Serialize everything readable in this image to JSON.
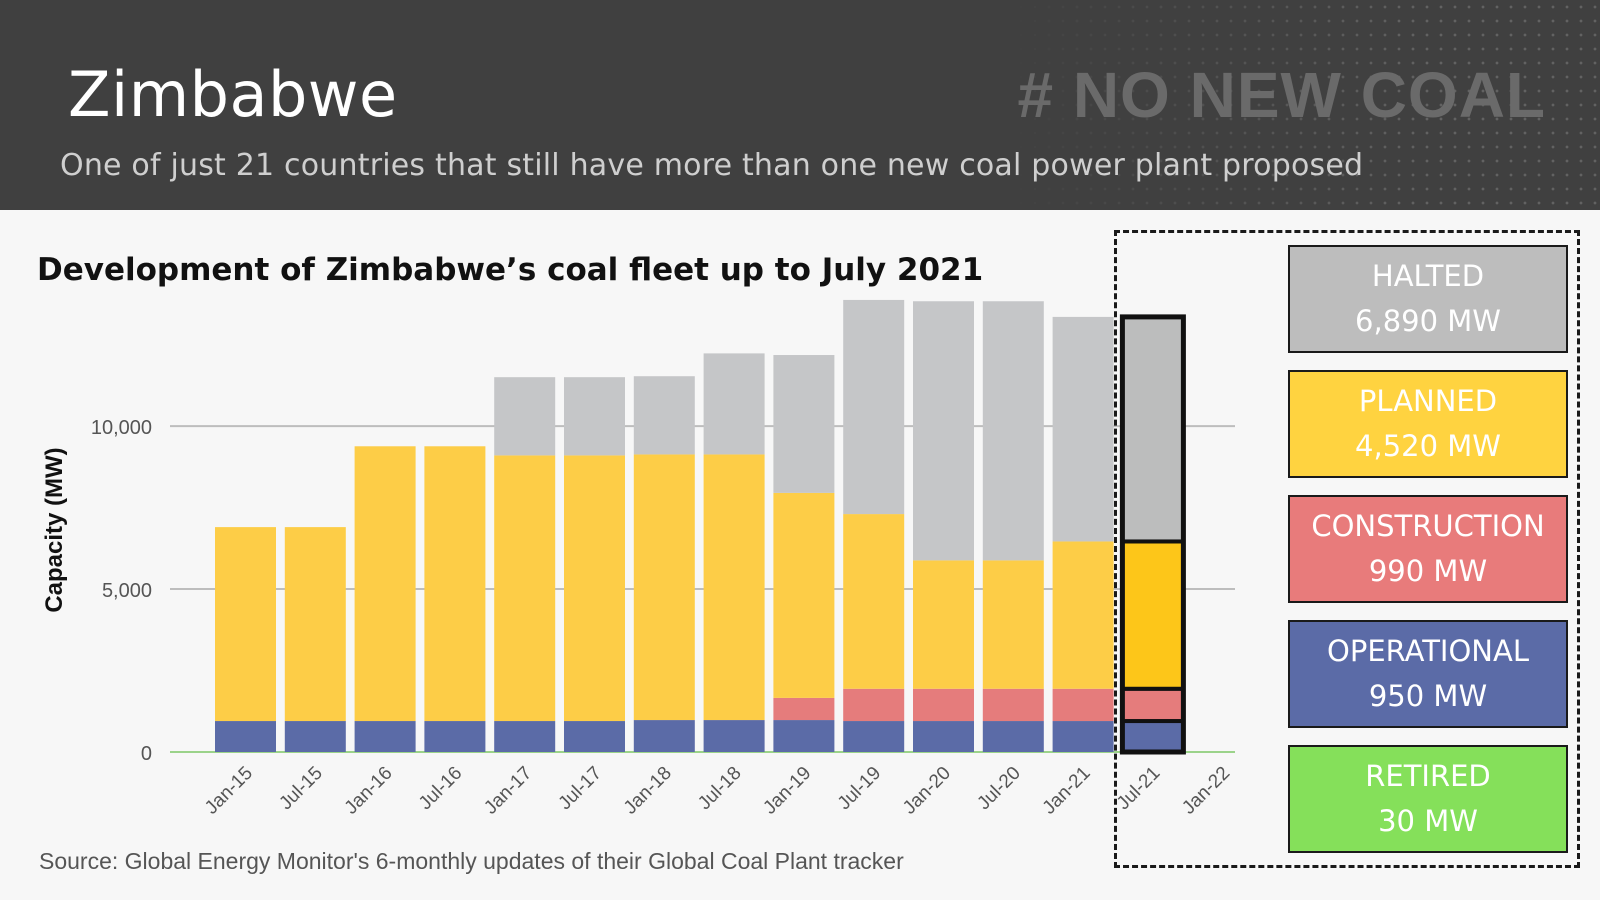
{
  "header": {
    "title": "Zimbabwe",
    "hashtag": "# NO NEW COAL",
    "subtitle": "One of just 21 countries that still have more than one new coal power plant proposed"
  },
  "chart_data": {
    "type": "bar",
    "stacked": true,
    "title": "Development of Zimbabwe’s coal fleet up to July 2021",
    "ylabel": "Capacity (MW)",
    "xlabel": "",
    "ylim": [
      0,
      13500
    ],
    "yticks": [
      0,
      5000,
      10000
    ],
    "ytick_labels": [
      "0",
      "5,000",
      "10,000"
    ],
    "grid": true,
    "categories": [
      "Jan-15",
      "Jul-15",
      "Jan-16",
      "Jul-16",
      "Jan-17",
      "Jul-17",
      "Jan-18",
      "Jul-18",
      "Jan-19",
      "Jul-19",
      "Jan-20",
      "Jul-20",
      "Jan-21",
      "Jul-21",
      "Jan-22"
    ],
    "highlight_category": "Jul-21",
    "series": [
      {
        "name": "OPERATIONAL",
        "color": "#5b6ba7",
        "values": [
          950,
          950,
          950,
          950,
          950,
          950,
          980,
          980,
          980,
          950,
          950,
          950,
          950,
          950,
          null
        ]
      },
      {
        "name": "CONSTRUCTION",
        "color": "#e57c7c",
        "values": [
          0,
          0,
          0,
          0,
          0,
          0,
          0,
          0,
          680,
          990,
          990,
          990,
          990,
          990,
          null
        ]
      },
      {
        "name": "PLANNED",
        "color": "#fdcd47",
        "highlight_color": "#fdc619",
        "values": [
          5950,
          5950,
          8430,
          8430,
          8150,
          8150,
          8150,
          8150,
          6290,
          5360,
          3940,
          3940,
          4520,
          4520,
          null
        ]
      },
      {
        "name": "HALTED",
        "color": "#c5c6c8",
        "highlight_color": "#bcbdbd",
        "values": [
          0,
          0,
          0,
          0,
          2400,
          2400,
          2400,
          3100,
          4230,
          6570,
          7950,
          7950,
          6890,
          6890,
          null
        ]
      }
    ],
    "legend": [
      {
        "name": "HALTED",
        "value": "6,890 MW",
        "color": "#bdbdbd"
      },
      {
        "name": "PLANNED",
        "value": "4,520 MW",
        "color": "#ffd340"
      },
      {
        "name": "CONSTRUCTION",
        "value": "990 MW",
        "color": "#e87b7b"
      },
      {
        "name": "OPERATIONAL",
        "value": "950 MW",
        "color": "#5b6ba7"
      },
      {
        "name": "RETIRED",
        "value": "30 MW",
        "color": "#85e05a"
      }
    ],
    "source": "Source: Global Energy Monitor's 6-monthly updates of their Global Coal Plant tracker"
  }
}
